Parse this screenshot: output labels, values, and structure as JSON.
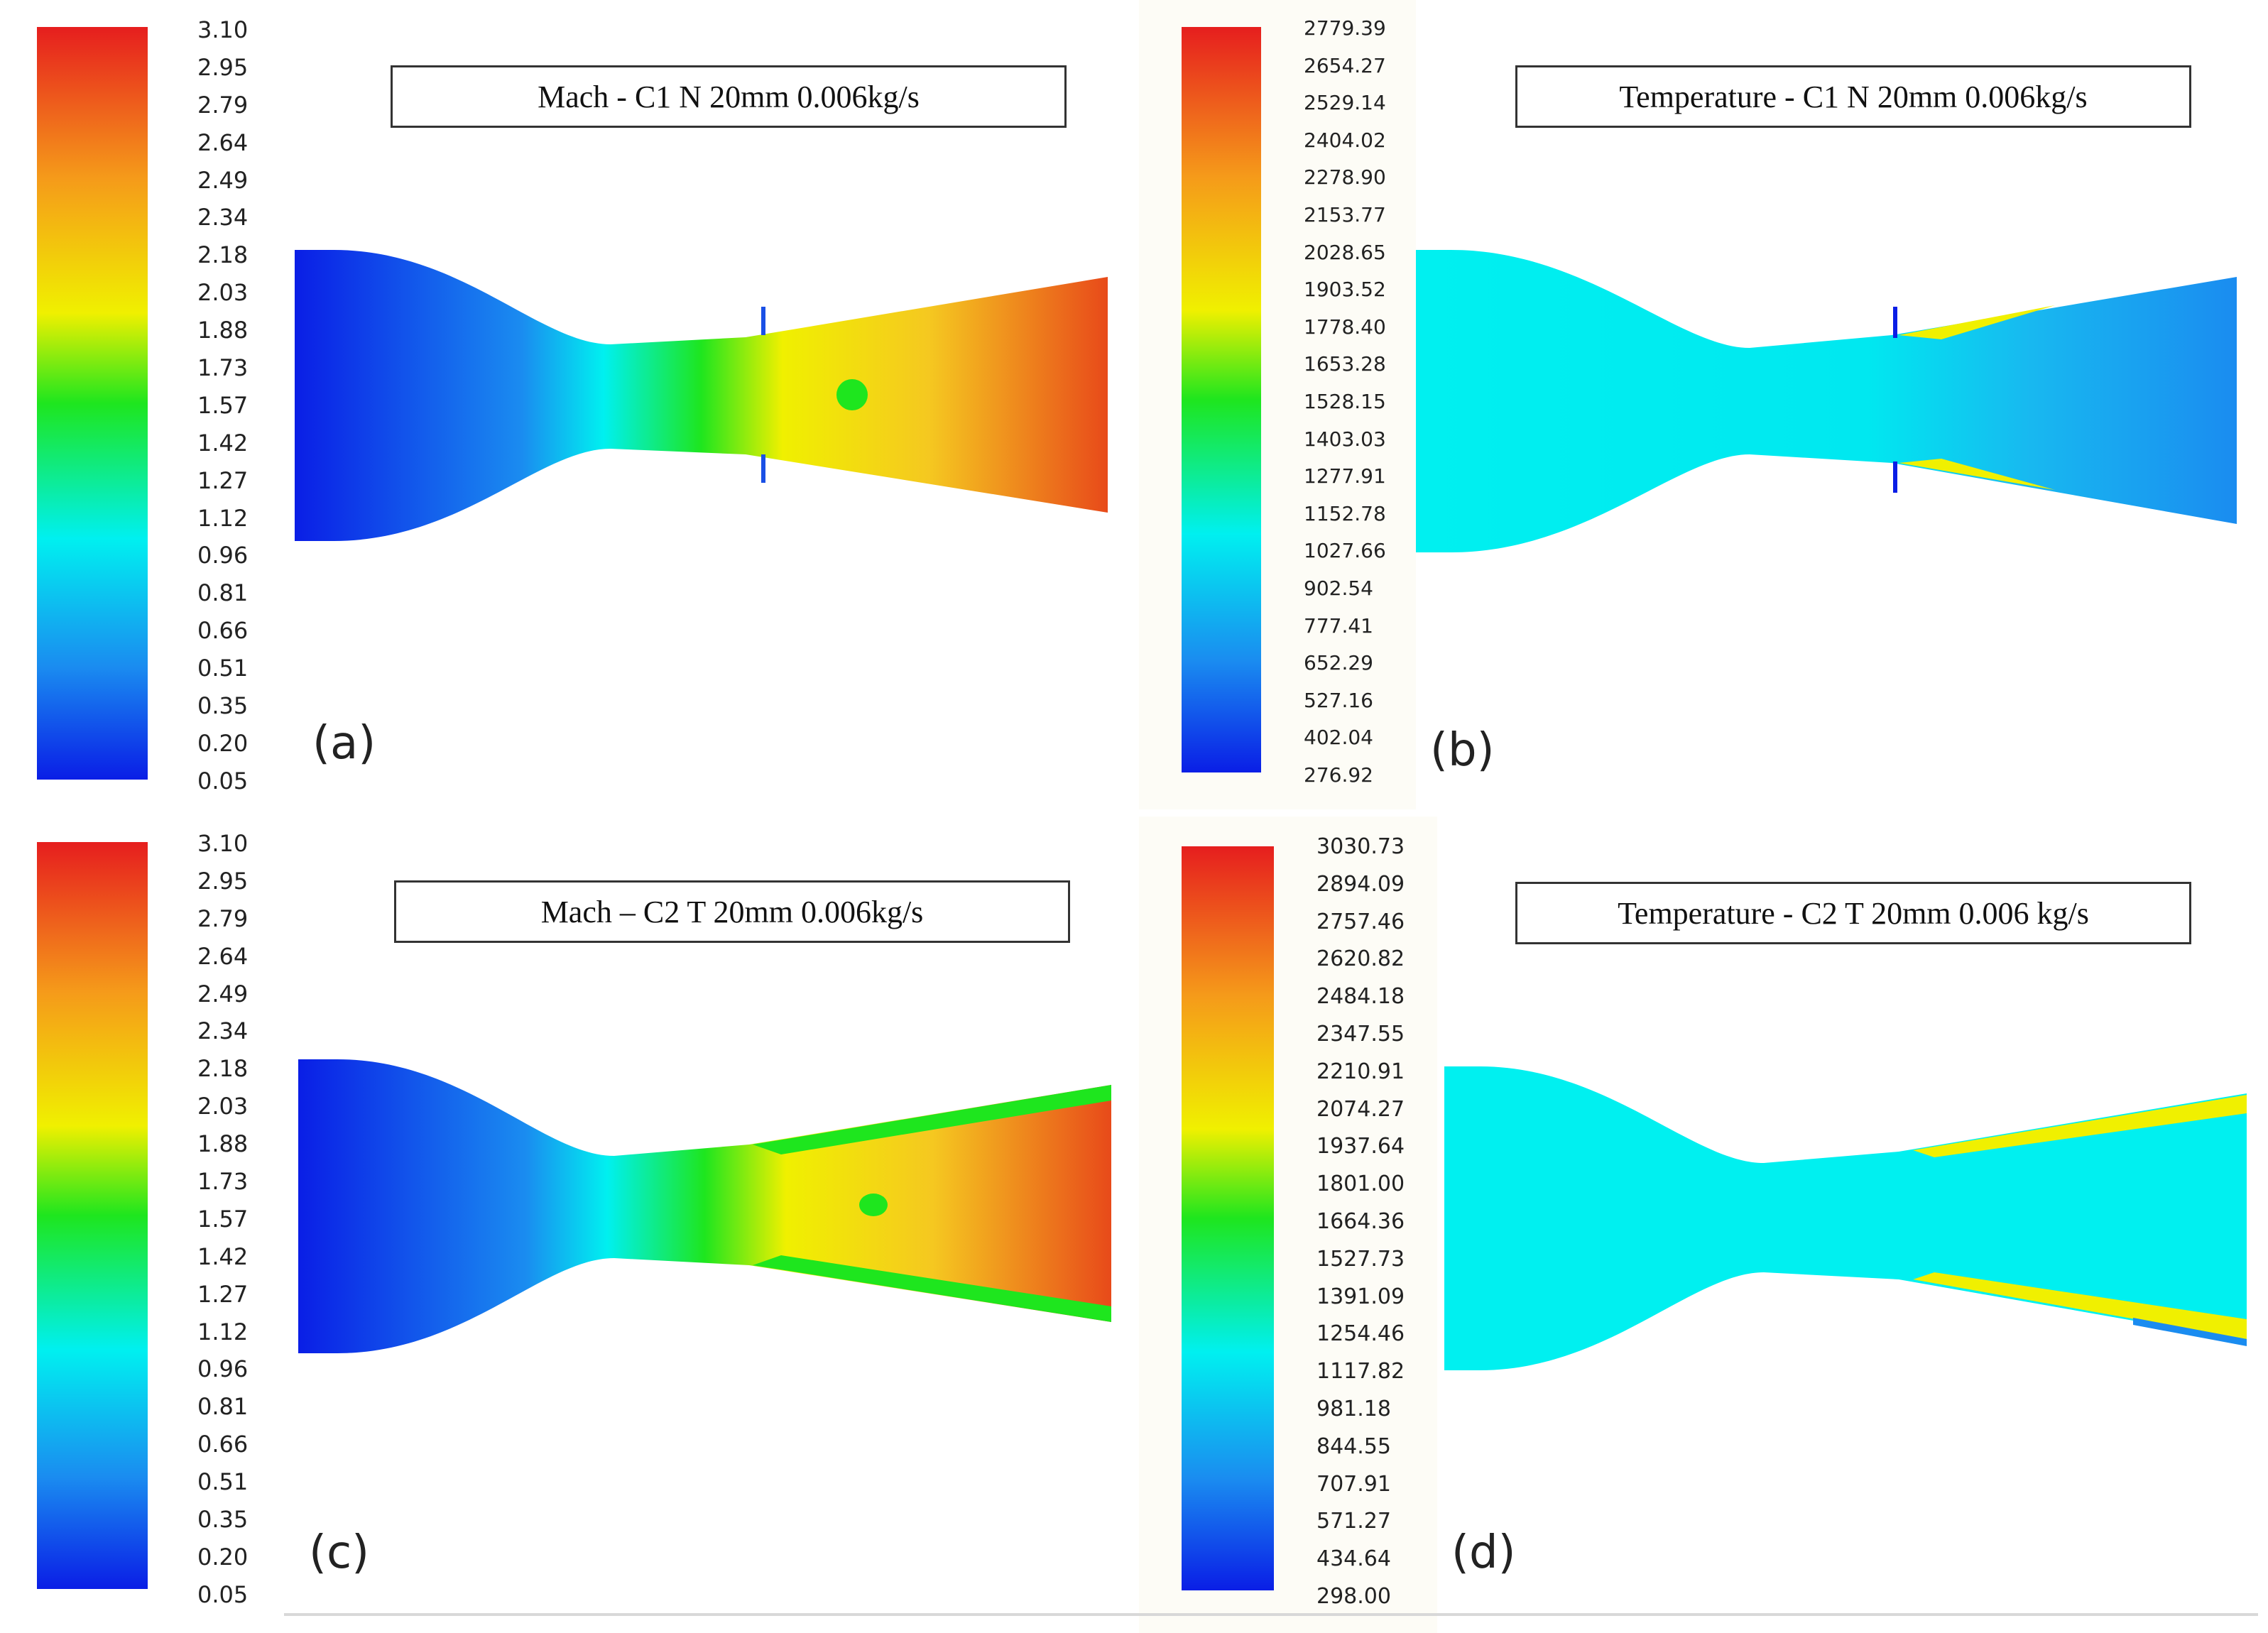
{
  "panels": [
    {
      "id": "a",
      "label": "(a)",
      "title": "Mach - C1 N 20mm 0.006kg/s",
      "quantity": "Mach",
      "ticks": [
        "3.10",
        "2.95",
        "2.79",
        "2.64",
        "2.49",
        "2.34",
        "2.18",
        "2.03",
        "1.88",
        "1.73",
        "1.57",
        "1.42",
        "1.27",
        "1.12",
        "0.96",
        "0.81",
        "0.66",
        "0.51",
        "0.35",
        "0.20",
        "0.05"
      ]
    },
    {
      "id": "b",
      "label": "(b)",
      "title": "Temperature - C1 N 20mm 0.006kg/s",
      "quantity": "Temperature",
      "ticks": [
        "2779.39",
        "2654.27",
        "2529.14",
        "2404.02",
        "2278.90",
        "2153.77",
        "2028.65",
        "1903.52",
        "1778.40",
        "1653.28",
        "1528.15",
        "1403.03",
        "1277.91",
        "1152.78",
        "1027.66",
        "902.54",
        "777.41",
        "652.29",
        "527.16",
        "402.04",
        "276.92"
      ]
    },
    {
      "id": "c",
      "label": "(c)",
      "title": "Mach – C2 T 20mm 0.006kg/s",
      "quantity": "Mach",
      "ticks": [
        "3.10",
        "2.95",
        "2.79",
        "2.64",
        "2.49",
        "2.34",
        "2.18",
        "2.03",
        "1.88",
        "1.73",
        "1.57",
        "1.42",
        "1.27",
        "1.12",
        "0.96",
        "0.81",
        "0.66",
        "0.51",
        "0.35",
        "0.20",
        "0.05"
      ]
    },
    {
      "id": "d",
      "label": "(d)",
      "title": "Temperature - C2 T 20mm 0.006 kg/s",
      "quantity": "Temperature",
      "ticks": [
        "3030.73",
        "2894.09",
        "2757.46",
        "2620.82",
        "2484.18",
        "2347.55",
        "2210.91",
        "2074.27",
        "1937.64",
        "1801.00",
        "1664.36",
        "1527.73",
        "1391.09",
        "1254.46",
        "1117.82",
        "981.18",
        "844.55",
        "707.91",
        "571.27",
        "434.64",
        "298.00"
      ]
    }
  ],
  "colors": {
    "blue": "#0a1ee6",
    "cyan": "#00f0f0",
    "green": "#1ee61e",
    "yellow": "#f0f000",
    "orange": "#f59a1a",
    "red": "#e61e1e"
  }
}
